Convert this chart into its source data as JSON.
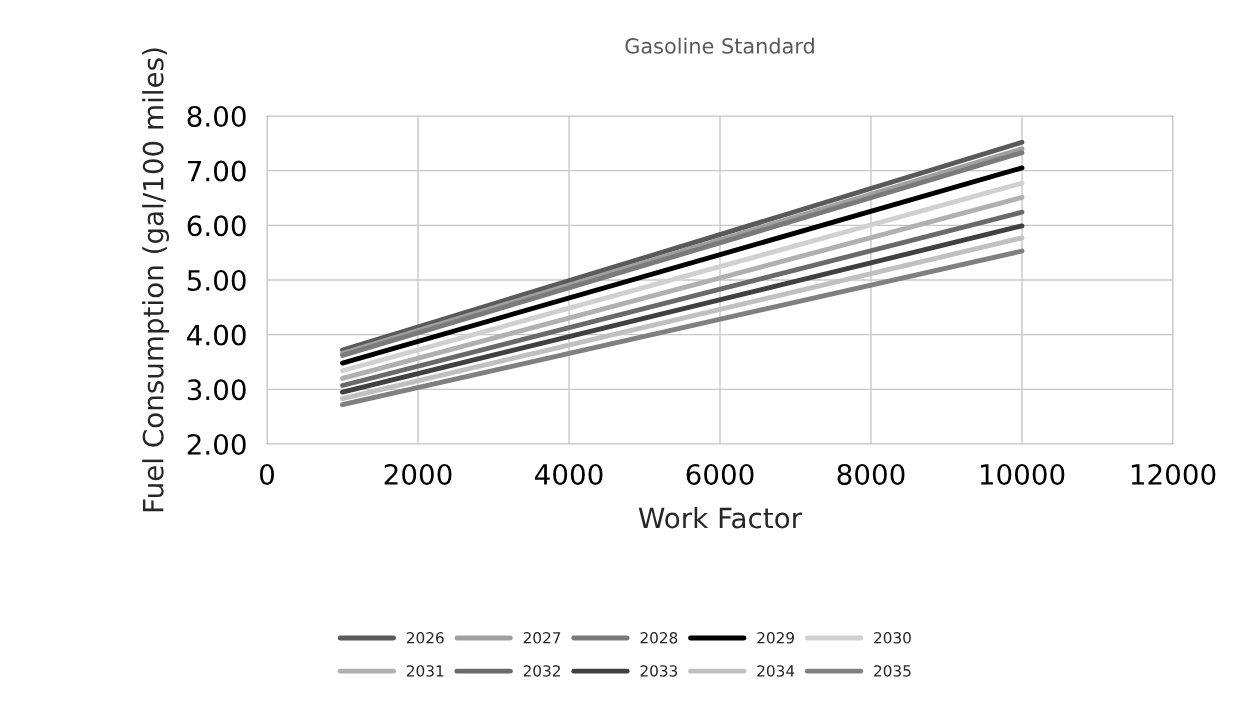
{
  "chart_data": {
    "type": "line",
    "title": "Gasoline Standard",
    "xlabel": "Work Factor",
    "ylabel": "Fuel Consumption (gal/100 miles)",
    "x": [
      1000,
      10000
    ],
    "series": [
      {
        "name": "2026",
        "color": "#5a5a5a",
        "values": [
          3.72,
          7.52
        ]
      },
      {
        "name": "2027",
        "color": "#a0a0a0",
        "values": [
          3.66,
          7.4
        ]
      },
      {
        "name": "2028",
        "color": "#7a7a7a",
        "values": [
          3.62,
          7.33
        ]
      },
      {
        "name": "2029",
        "color": "#000000",
        "values": [
          3.48,
          7.05
        ]
      },
      {
        "name": "2030",
        "color": "#d0d0d0",
        "values": [
          3.34,
          6.77
        ]
      },
      {
        "name": "2031",
        "color": "#b0b0b0",
        "values": [
          3.2,
          6.51
        ]
      },
      {
        "name": "2032",
        "color": "#6a6a6a",
        "values": [
          3.07,
          6.24
        ]
      },
      {
        "name": "2033",
        "color": "#404040",
        "values": [
          2.95,
          5.99
        ]
      },
      {
        "name": "2034",
        "color": "#c0c0c0",
        "values": [
          2.83,
          5.77
        ]
      },
      {
        "name": "2035",
        "color": "#808080",
        "values": [
          2.72,
          5.53
        ]
      }
    ],
    "xlim": [
      0,
      12000
    ],
    "xticks": [
      0,
      2000,
      4000,
      6000,
      8000,
      10000,
      12000
    ],
    "ylim": [
      2,
      8
    ],
    "yticks": [
      {
        "value": 2,
        "label": "2.00"
      },
      {
        "value": 3,
        "label": "3.00"
      },
      {
        "value": 4,
        "label": "4.00"
      },
      {
        "value": 5,
        "label": "5.00"
      },
      {
        "value": 6,
        "label": "6.00"
      },
      {
        "value": 7,
        "label": "7.00"
      },
      {
        "value": 8,
        "label": "8.00"
      }
    ],
    "grid": true,
    "legend": "bottom",
    "marker": "none",
    "line_style": "solid"
  }
}
